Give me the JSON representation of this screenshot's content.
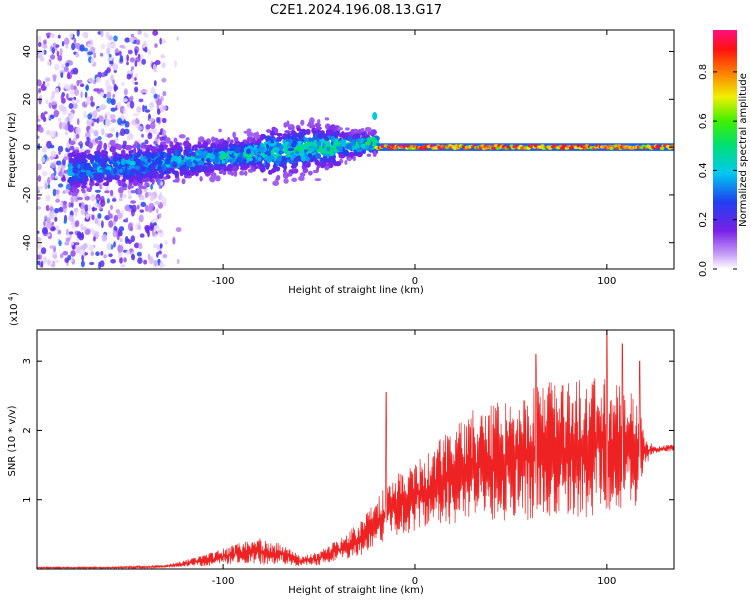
{
  "title": "C2E1.2024.196.08.13.G17",
  "chart_data": [
    {
      "type": "heatmap",
      "xlabel": "Height of straight line (km)",
      "ylabel": "Frequency (Hz)",
      "xlim": [
        -197,
        135
      ],
      "ylim": [
        -51,
        49
      ],
      "xticks": [
        -100,
        0,
        100
      ],
      "yticks": [
        -40,
        -20,
        0,
        20,
        40
      ],
      "colorbar": {
        "label": "Normalized spectral amplitude",
        "range": [
          0.0,
          0.97
        ],
        "ticks": [
          0.0,
          0.2,
          0.4,
          0.6,
          0.8
        ],
        "colormap": "rainbow (purple-blue-cyan-green-yellow-red-pink)"
      },
      "features": [
        {
          "segment": "scattered low-amplitude noise",
          "x_range": [
            -197,
            -130
          ],
          "freq_range": [
            -50,
            48
          ],
          "amplitude": [
            0.0,
            0.3
          ]
        },
        {
          "segment": "broad signal band",
          "x_range": [
            -180,
            -20
          ],
          "freq_center": [
            -10,
            2
          ],
          "freq_halfwidth": [
            8,
            4
          ],
          "amplitude": [
            0.1,
            0.6
          ]
        },
        {
          "segment": "narrow carrier line",
          "x_range": [
            -20,
            135
          ],
          "freq_center": 0,
          "freq_halfwidth": 1,
          "amplitude": [
            0.6,
            0.97
          ]
        }
      ]
    },
    {
      "type": "line",
      "xlabel": "Height of straight line (km)",
      "ylabel": "SNR (10 * v/v)",
      "y_multiplier": "(x10^4)",
      "xlim": [
        -197,
        135
      ],
      "ylim": [
        0,
        3.45
      ],
      "xticks": [
        -100,
        0,
        100
      ],
      "yticks": [
        1,
        2,
        3
      ],
      "color": "#ee2222",
      "series": [
        {
          "x": [
            -197,
            -180,
            -160,
            -140,
            -130,
            -120,
            -110,
            -100,
            -90,
            -80,
            -70,
            -60,
            -50,
            -40,
            -30,
            -25,
            -20,
            -15,
            -10,
            -5,
            0,
            10,
            20,
            30,
            40,
            50,
            60,
            70,
            80,
            90,
            100,
            110,
            115,
            120,
            125,
            130,
            135
          ],
          "y": [
            0.02,
            0.02,
            0.02,
            0.03,
            0.04,
            0.08,
            0.12,
            0.18,
            0.24,
            0.26,
            0.22,
            0.12,
            0.15,
            0.28,
            0.4,
            0.55,
            0.7,
            0.8,
            0.9,
            1.0,
            1.05,
            1.2,
            1.35,
            1.5,
            1.55,
            1.6,
            1.65,
            1.7,
            1.72,
            1.75,
            1.8,
            1.75,
            1.7,
            1.7,
            1.72,
            1.74,
            1.75
          ],
          "spread": [
            0.01,
            0.01,
            0.01,
            0.02,
            0.02,
            0.05,
            0.08,
            0.12,
            0.15,
            0.2,
            0.15,
            0.08,
            0.1,
            0.15,
            0.25,
            0.3,
            0.35,
            0.4,
            0.45,
            0.5,
            0.5,
            0.6,
            0.7,
            0.8,
            0.85,
            0.9,
            0.95,
            1.0,
            1.0,
            1.0,
            1.0,
            0.9,
            0.9,
            0.2,
            0.05,
            0.05,
            0.05
          ]
        }
      ],
      "peaks": [
        {
          "x": -15,
          "y": 2.55
        },
        {
          "x": 100,
          "y": 3.45
        },
        {
          "x": 108,
          "y": 3.25
        },
        {
          "x": 117,
          "y": 3.0
        },
        {
          "x": 63,
          "y": 3.1
        }
      ]
    }
  ]
}
